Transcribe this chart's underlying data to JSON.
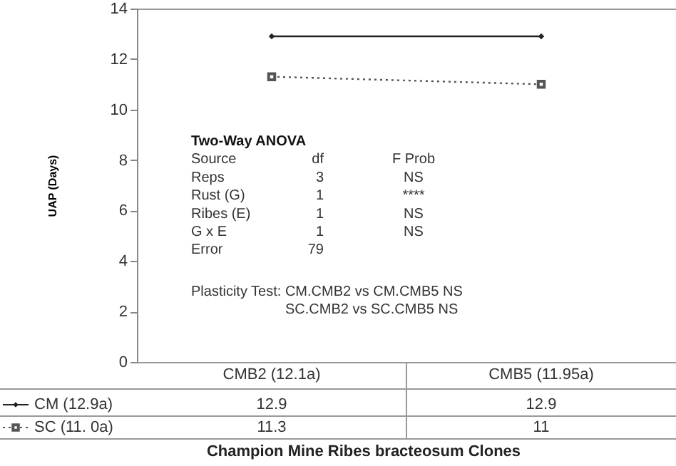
{
  "chart_data": {
    "type": "line",
    "categories": [
      "CMB2 (12.1a)",
      "CMB5 (11.95a)"
    ],
    "series": [
      {
        "name": "CM (12.9a)",
        "color": "#222222",
        "values": [
          12.9,
          12.9
        ],
        "marker": "diamond",
        "line_style": "solid"
      },
      {
        "name": "SC (11. 0a)",
        "color": "#555555",
        "values": [
          11.3,
          11
        ],
        "marker": "square",
        "line_style": "dotted"
      }
    ],
    "ylabel": "UAP (Days)",
    "xlabel": "Champion Mine Ribes bracteosum Clones",
    "ylim": [
      0,
      14
    ],
    "yticks": [
      0,
      2,
      4,
      6,
      8,
      10,
      12,
      14
    ],
    "grid": false,
    "legend": "bottom left",
    "data_labels": true,
    "annotations": [
      "Two-Way ANOVA",
      "Source",
      "df",
      "F Prob",
      "Reps",
      "3",
      "NS",
      "Rust (G)",
      "1",
      "****",
      "Ribes (E)",
      "1",
      "NS",
      "G x E",
      "1",
      "NS",
      "Error",
      "79",
      "Plasticity Test: CM.CMB2 vs CM.CMB5  NS",
      "SC.CMB2 vs SC.CMB5  NS"
    ]
  }
}
